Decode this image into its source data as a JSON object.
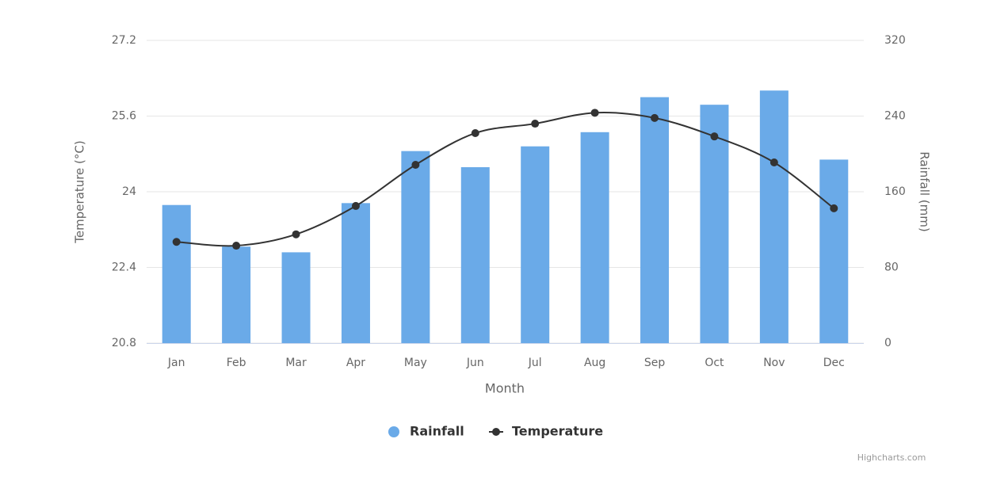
{
  "chart_data": {
    "type": "combo",
    "x_label": "Month",
    "categories": [
      "Jan",
      "Feb",
      "Mar",
      "Apr",
      "May",
      "Jun",
      "Jul",
      "Aug",
      "Sep",
      "Oct",
      "Nov",
      "Dec"
    ],
    "series": [
      {
        "name": "Rainfall",
        "type": "column",
        "axis": "y2",
        "color": "#6aaae8",
        "values": [
          146,
          102,
          96,
          148,
          203,
          186,
          208,
          223,
          260,
          252,
          267,
          194
        ]
      },
      {
        "name": "Temperature",
        "type": "spline",
        "axis": "y",
        "color": "#333333",
        "values": [
          22.94,
          22.86,
          23.1,
          23.7,
          24.57,
          25.24,
          25.44,
          25.67,
          25.56,
          25.17,
          24.62,
          23.65
        ]
      }
    ],
    "y_label": "Temperature (°C)",
    "ylim": [
      20.8,
      27.2
    ],
    "yticks": [
      20.8,
      22.4,
      24,
      25.6,
      27.2
    ],
    "y2_label": "Rainfall (mm)",
    "y2lim": [
      0,
      320
    ],
    "y2ticks": [
      0,
      80,
      160,
      240,
      320
    ],
    "grid": true,
    "legend": "bottom",
    "credit": "Highcharts.com"
  }
}
